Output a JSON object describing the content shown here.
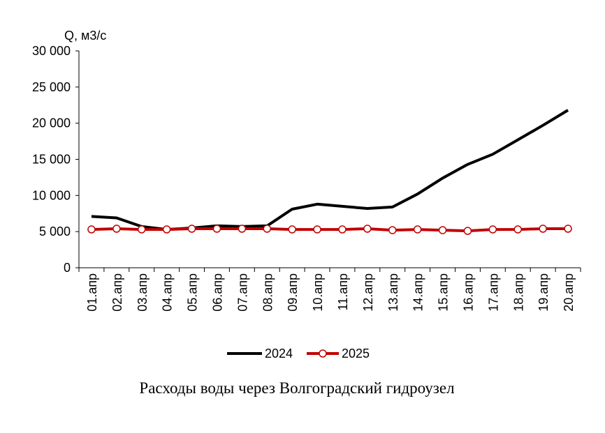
{
  "chart_data": {
    "type": "line",
    "title": "",
    "caption": "Расходы воды через Волгоградский гидроузел",
    "ylabel": "Q, м3/с",
    "xlabel": "",
    "ylim": [
      0,
      30000
    ],
    "yticks": [
      0,
      5000,
      10000,
      15000,
      20000,
      25000,
      30000
    ],
    "ytick_labels": [
      "0",
      "5 000",
      "10 000",
      "15 000",
      "20 000",
      "25 000",
      "30 000"
    ],
    "categories": [
      "01.апр",
      "02.апр",
      "03.апр",
      "04.апр",
      "05.апр",
      "06.апр",
      "07.апр",
      "08.апр",
      "09.апр",
      "10.апр",
      "11.апр",
      "12.апр",
      "13.апр",
      "14.апр",
      "15.апр",
      "16.апр",
      "17.апр",
      "18.апр",
      "19.апр",
      "20.апр"
    ],
    "grid": false,
    "legend_position": "bottom",
    "series": [
      {
        "name": "2024",
        "color": "#000000",
        "marker": "none",
        "values": [
          7100,
          6900,
          5700,
          5300,
          5500,
          5800,
          5700,
          5800,
          8100,
          8800,
          8500,
          8200,
          8400,
          10200,
          12400,
          14300,
          15700,
          17700,
          19700,
          21800
        ]
      },
      {
        "name": "2025",
        "color": "#c00000",
        "marker": "circle",
        "values": [
          5300,
          5400,
          5300,
          5300,
          5400,
          5400,
          5400,
          5400,
          5300,
          5300,
          5300,
          5400,
          5200,
          5300,
          5200,
          5100,
          5300,
          5300,
          5400,
          5400
        ]
      }
    ]
  }
}
